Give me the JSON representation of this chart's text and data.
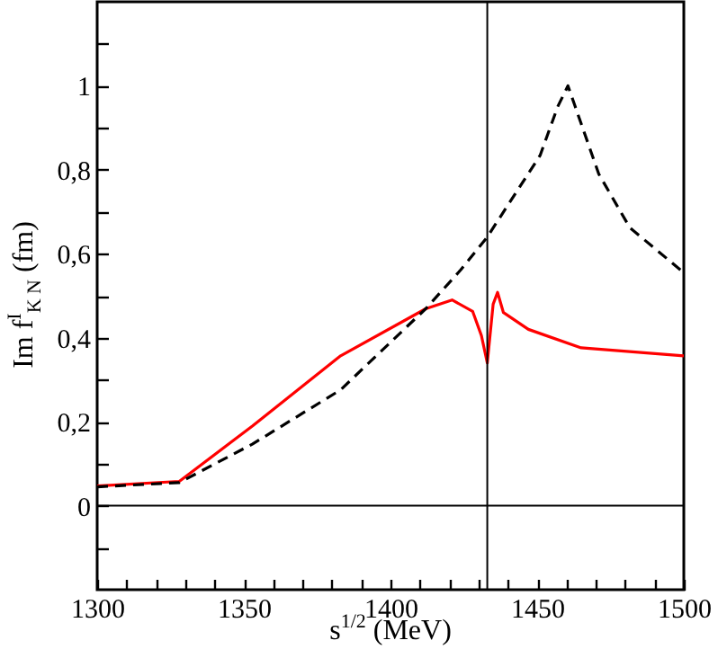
{
  "chart_data": {
    "type": "line",
    "xlabel": "s$^{1/2}$ (MeV)",
    "ylabel": "Im f$^{I}$$_{K N}$ (fm)",
    "xlim": [
      1300,
      1500
    ],
    "ylim": [
      -0.2,
      1.2
    ],
    "xticks": [
      1300,
      {
        "value": 1310,
        "label": null
      },
      {
        "value": 1320,
        "label": null
      },
      {
        "value": 1330,
        "label": null
      },
      {
        "value": 1340,
        "label": null
      },
      1350,
      {
        "value": 1360,
        "label": null
      },
      {
        "value": 1370,
        "label": null
      },
      {
        "value": 1380,
        "label": null
      },
      {
        "value": 1390,
        "label": null
      },
      1400,
      {
        "value": 1410,
        "label": null
      },
      {
        "value": 1420,
        "label": null
      },
      {
        "value": 1430,
        "label": null
      },
      {
        "value": 1440,
        "label": null
      },
      1450,
      {
        "value": 1460,
        "label": null
      },
      {
        "value": 1470,
        "label": null
      },
      {
        "value": 1480,
        "label": null
      },
      {
        "value": 1490,
        "label": null
      },
      1500
    ],
    "yticks": [
      {
        "value": -0.1,
        "label": null
      },
      0,
      {
        "value": 0.1,
        "label": null
      },
      {
        "value": 0.2,
        "label": "0,2"
      },
      {
        "value": 0.3,
        "label": null
      },
      {
        "value": 0.4,
        "label": "0,4"
      },
      {
        "value": 0.5,
        "label": null
      },
      {
        "value": 0.6,
        "label": "0,6"
      },
      {
        "value": 0.7,
        "label": null
      },
      {
        "value": 0.8,
        "label": "0,8"
      },
      {
        "value": 0.9,
        "label": null
      },
      1,
      {
        "value": 1.1,
        "label": null
      }
    ],
    "grid": false,
    "series": [
      {
        "color": "#ff0000",
        "line_style": "solid",
        "x": [
          1300,
          1328,
          1353,
          1383,
          1412,
          1421,
          1428,
          1431,
          1433,
          1435,
          1436.5,
          1438.5,
          1447,
          1465,
          1500
        ],
        "values": [
          0.047,
          0.058,
          0.19,
          0.357,
          0.469,
          0.49,
          0.463,
          0.405,
          0.34,
          0.48,
          0.508,
          0.46,
          0.42,
          0.376,
          0.357
        ]
      },
      {
        "color": "#000000",
        "line_style": "dashed",
        "x": [
          1300,
          1328,
          1353,
          1383,
          1412,
          1424,
          1433,
          1451,
          1457,
          1460.5,
          1463,
          1471,
          1481.6,
          1500
        ],
        "values": [
          0.045,
          0.055,
          0.147,
          0.276,
          0.469,
          0.562,
          0.64,
          0.834,
          0.95,
          1.0,
          0.95,
          0.79,
          0.662,
          0.555
        ]
      }
    ],
    "ref_lines": [
      {
        "axis": "x",
        "value": 1433,
        "color": "#000000"
      },
      {
        "axis": "y",
        "value": 0,
        "color": "#000000"
      }
    ]
  }
}
